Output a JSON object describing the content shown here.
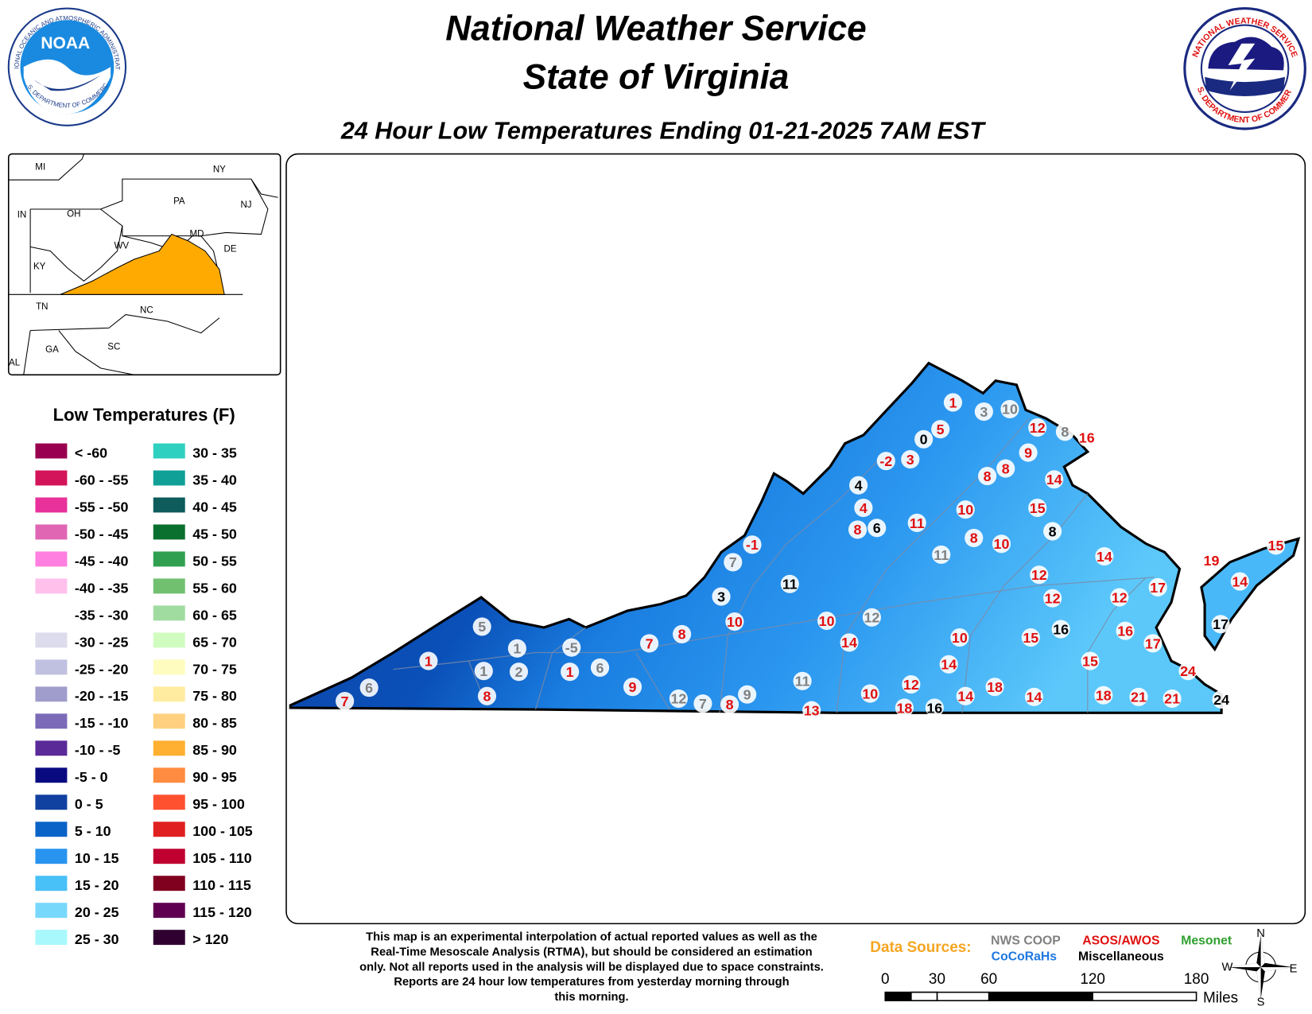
{
  "header": {
    "title_line1": "National Weather Service",
    "title_line2": "State of Virginia",
    "subtitle": "24 Hour Low Temperatures Ending 01-21-2025 7AM EST"
  },
  "logos": {
    "noaa": {
      "text": "NOAA",
      "ring_top": "NATIONAL OCEANIC AND ATMOSPHERIC ADMINISTRATION",
      "ring_bottom": "U.S. DEPARTMENT OF COMMERCE"
    },
    "nws": {
      "ring_top": "NATIONAL WEATHER SERVICE",
      "ring_bottom": "U.S. DEPARTMENT OF COMMERCE"
    }
  },
  "inset": {
    "highlight_color": "#ffaa00",
    "labels": [
      "MI",
      "NY",
      "PA",
      "NJ",
      "IN",
      "OH",
      "WV",
      "MD",
      "DE",
      "KY",
      "TN",
      "NC",
      "GA",
      "SC",
      "AL"
    ]
  },
  "legend": {
    "title": "Low Temperatures (F)",
    "items": [
      {
        "label": "< -60",
        "color": "#9a0050"
      },
      {
        "label": "-60 - -55",
        "color": "#d4145a"
      },
      {
        "label": "-55 - -50",
        "color": "#e8319a"
      },
      {
        "label": "-50 - -45",
        "color": "#e066b4"
      },
      {
        "label": "-45 - -40",
        "color": "#ff7fe0"
      },
      {
        "label": "-40 - -35",
        "color": "#ffc0ec"
      },
      {
        "label": "-35 - -30",
        "color": "#ffffff"
      },
      {
        "label": "-30 - -25",
        "color": "#dcdcec"
      },
      {
        "label": "-25 - -20",
        "color": "#c0c0e0"
      },
      {
        "label": "-20 - -15",
        "color": "#a09ccc"
      },
      {
        "label": "-15 - -10",
        "color": "#7a6ab8"
      },
      {
        "label": "-10 - -5",
        "color": "#5a2a98"
      },
      {
        "label": "-5 - 0",
        "color": "#0a0a80"
      },
      {
        "label": "0 - 5",
        "color": "#1040a0"
      },
      {
        "label": "5 - 10",
        "color": "#0a64c8"
      },
      {
        "label": "10 - 15",
        "color": "#2894f0"
      },
      {
        "label": "15 - 20",
        "color": "#48c0f8"
      },
      {
        "label": "20 - 25",
        "color": "#78d8fc"
      },
      {
        "label": "25 - 30",
        "color": "#a8f8fc"
      },
      {
        "label": "30 - 35",
        "color": "#30d0c0"
      },
      {
        "label": "35 - 40",
        "color": "#10a098"
      },
      {
        "label": "40 - 45",
        "color": "#0e5c5c"
      },
      {
        "label": "45 - 50",
        "color": "#0a7030"
      },
      {
        "label": "50 - 55",
        "color": "#30a050"
      },
      {
        "label": "55 - 60",
        "color": "#70c070"
      },
      {
        "label": "60 - 65",
        "color": "#a0dca0"
      },
      {
        "label": "65 - 70",
        "color": "#d0fcc0"
      },
      {
        "label": "70 - 75",
        "color": "#fffcc0"
      },
      {
        "label": "75 - 80",
        "color": "#ffeca0"
      },
      {
        "label": "80 - 85",
        "color": "#ffd080"
      },
      {
        "label": "85 - 90",
        "color": "#ffb030"
      },
      {
        "label": "90 - 95",
        "color": "#ff8c40"
      },
      {
        "label": "95 - 100",
        "color": "#ff5030"
      },
      {
        "label": "100 - 105",
        "color": "#e02020"
      },
      {
        "label": "105 - 110",
        "color": "#c00030"
      },
      {
        "label": "110 - 115",
        "color": "#800020"
      },
      {
        "label": "115 - 120",
        "color": "#600050"
      },
      {
        "label": "> 120",
        "color": "#300030"
      }
    ]
  },
  "data_sources": {
    "title": "Data Sources:",
    "items": [
      {
        "name": "NWS COOP",
        "color": "#808080",
        "stations": [
          10,
          3,
          8,
          11,
          7,
          12,
          5,
          1,
          -5,
          6,
          1,
          2,
          6,
          12,
          7,
          9,
          11
        ]
      },
      {
        "name": "ASOS/AWOS",
        "color": "#e01010",
        "stations": [
          1,
          5,
          -2,
          3,
          12,
          16,
          9,
          8,
          8,
          14,
          4,
          15,
          10,
          8,
          11,
          8,
          10,
          -1,
          14,
          19,
          15,
          12,
          17,
          12,
          12,
          10,
          10,
          16,
          17,
          15,
          10,
          14,
          8,
          7,
          1,
          14,
          15,
          24,
          18,
          12,
          10,
          14,
          14,
          18,
          21,
          21,
          9,
          8,
          1,
          7,
          8,
          13,
          18,
          14
        ]
      },
      {
        "name": "Mesonet",
        "color": "#30a030"
      },
      {
        "name": "CoCoRaHs",
        "color": "#1e78e0"
      },
      {
        "name": "Miscellaneous",
        "color": "#000000",
        "stations": [
          0,
          4,
          6,
          8,
          11,
          3,
          16,
          17,
          16,
          24
        ]
      }
    ]
  },
  "disclaimer": [
    "This map is an experimental interpolation of actual reported values as well as the",
    "Real-Time Mesoscale Analysis (RTMA), but should be considered an estimation",
    "only. Not all reports used in the analysis will be displayed due to space constraints.",
    "Reports are 24 hour low temperatures from yesterday morning through",
    "this morning."
  ],
  "scale": {
    "ticks": [
      0,
      30,
      60,
      120,
      180
    ],
    "unit": "Miles"
  },
  "compass": {
    "n": "N",
    "e": "E",
    "s": "S",
    "w": "W"
  }
}
